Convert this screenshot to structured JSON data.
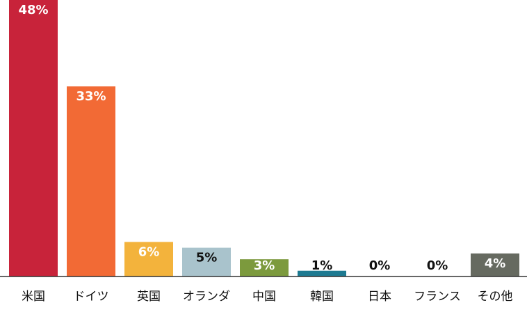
{
  "chart_data": {
    "type": "bar",
    "categories": [
      "米国",
      "ドイツ",
      "英国",
      "オランダ",
      "中国",
      "韓国",
      "日本",
      "フランス",
      "その他"
    ],
    "values": [
      48,
      33,
      6,
      5,
      3,
      1,
      0,
      0,
      4
    ],
    "value_labels": [
      "48%",
      "33%",
      "6%",
      "5%",
      "3%",
      "1%",
      "0%",
      "0%",
      "4%"
    ],
    "colors": [
      "#c8233a",
      "#f26a35",
      "#f3b33c",
      "#a9c3cc",
      "#7c9a3d",
      "#1d7a91",
      "#cccccc",
      "#cccccc",
      "#666a60"
    ],
    "label_colors": [
      "#ffffff",
      "#ffffff",
      "#ffffff",
      "#111111",
      "#ffffff",
      "#111111",
      "#111111",
      "#111111",
      "#ffffff"
    ],
    "title": "",
    "xlabel": "",
    "ylabel": "",
    "ylim": [
      0,
      48
    ],
    "grid": false,
    "legend": "none",
    "axis_color": "#333333"
  }
}
